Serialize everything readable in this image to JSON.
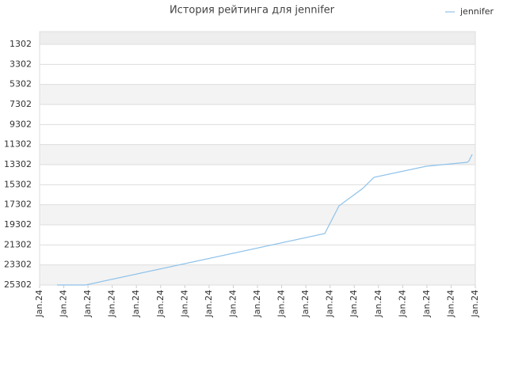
{
  "chart_data": {
    "type": "line",
    "title": "История рейтинга для jennifer",
    "series": [
      {
        "name": "jennifer",
        "color": "#8ec2ea",
        "x": [
          0.72,
          1.9,
          11.78,
          12.37,
          13.35,
          13.81,
          15.97,
          17.67,
          17.74,
          17.87
        ],
        "values": [
          25302,
          25302,
          20172,
          17409,
          15672,
          14567,
          13462,
          13067,
          12908,
          12277
        ]
      }
    ],
    "xlim": [
      0,
      18
    ],
    "xticks": [
      {
        "value": 0,
        "label": "Jan.24"
      },
      {
        "value": 1,
        "label": "Jan.24"
      },
      {
        "value": 2,
        "label": "Jan.24"
      },
      {
        "value": 3,
        "label": "Jan.24"
      },
      {
        "value": 4,
        "label": "Jan.24"
      },
      {
        "value": 5,
        "label": "Jan.24"
      },
      {
        "value": 6,
        "label": "Jan.24"
      },
      {
        "value": 7,
        "label": "Jan.24"
      },
      {
        "value": 8,
        "label": "Jan.24"
      },
      {
        "value": 9,
        "label": "Jan.24"
      },
      {
        "value": 10,
        "label": "Jan.24"
      },
      {
        "value": 11,
        "label": "Jan.24"
      },
      {
        "value": 12,
        "label": "Jan.24"
      },
      {
        "value": 13,
        "label": "Jan.24"
      },
      {
        "value": 14,
        "label": "Jan.24"
      },
      {
        "value": 15,
        "label": "Jan.24"
      },
      {
        "value": 16,
        "label": "Jan.24"
      },
      {
        "value": 17,
        "label": "Jan.24"
      },
      {
        "value": 18,
        "label": "Jan.24"
      }
    ],
    "ylim": [
      25302,
      39
    ],
    "yticks": [
      1302,
      3302,
      5302,
      7302,
      9302,
      11302,
      13302,
      15302,
      17302,
      19302,
      21302,
      23302,
      25302
    ],
    "grid": true,
    "legend": "top-right"
  }
}
